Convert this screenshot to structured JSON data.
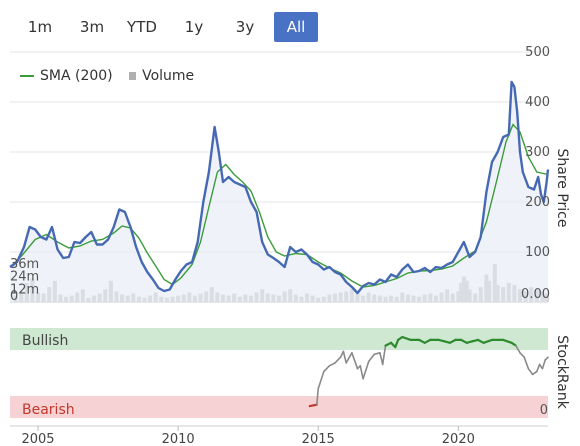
{
  "range_buttons": [
    {
      "label": "1m",
      "active": false
    },
    {
      "label": "3m",
      "active": false
    },
    {
      "label": "YTD",
      "active": false
    },
    {
      "label": "1y",
      "active": false
    },
    {
      "label": "3y",
      "active": false
    },
    {
      "label": "All",
      "active": true
    }
  ],
  "legend": {
    "sma_label": "SMA (200)",
    "volume_label": "Volume"
  },
  "colors": {
    "price": "#4669b4",
    "sma": "#3a9d3a",
    "volume": "#b9b9b9",
    "bullish_band": "#cfe8d2",
    "bearish_band": "#f6d2d4",
    "rank_line": "#8a8a8a",
    "rank_bullish": "#2d8a2d",
    "rank_bearish": "#c0392b",
    "active_button": "#4a72c4"
  },
  "chart_data": {
    "type": "line",
    "price_axis": {
      "title": "Share Price",
      "ticks": [
        0,
        100,
        200,
        300,
        400,
        500
      ],
      "tick_labels": [
        "0.00",
        "100",
        "200",
        "300",
        "400",
        "500"
      ],
      "ylim": [
        0,
        500
      ]
    },
    "volume_axis": {
      "ticks": [
        0,
        12,
        24,
        36
      ],
      "tick_labels": [
        "0",
        "12m",
        "24m",
        "36m"
      ],
      "ylim": [
        0,
        100
      ]
    },
    "x_axis": {
      "ticks": [
        2005,
        2010,
        2015,
        2020
      ],
      "tick_labels": [
        "2005",
        "2010",
        "2015",
        "2020"
      ],
      "xlim": [
        2004,
        2023.2
      ]
    },
    "series": [
      {
        "name": "Share Price",
        "points": [
          [
            2004.0,
            70
          ],
          [
            2004.25,
            80
          ],
          [
            2004.5,
            110
          ],
          [
            2004.7,
            150
          ],
          [
            2004.9,
            145
          ],
          [
            2005.1,
            130
          ],
          [
            2005.3,
            125
          ],
          [
            2005.5,
            150
          ],
          [
            2005.7,
            105
          ],
          [
            2005.9,
            88
          ],
          [
            2006.1,
            90
          ],
          [
            2006.3,
            120
          ],
          [
            2006.5,
            118
          ],
          [
            2006.7,
            130
          ],
          [
            2006.9,
            140
          ],
          [
            2007.1,
            115
          ],
          [
            2007.3,
            115
          ],
          [
            2007.5,
            125
          ],
          [
            2007.7,
            150
          ],
          [
            2007.9,
            185
          ],
          [
            2008.1,
            180
          ],
          [
            2008.3,
            150
          ],
          [
            2008.5,
            110
          ],
          [
            2008.7,
            80
          ],
          [
            2008.9,
            60
          ],
          [
            2009.1,
            45
          ],
          [
            2009.3,
            28
          ],
          [
            2009.5,
            22
          ],
          [
            2009.7,
            25
          ],
          [
            2009.9,
            45
          ],
          [
            2010.1,
            62
          ],
          [
            2010.3,
            75
          ],
          [
            2010.5,
            80
          ],
          [
            2010.7,
            120
          ],
          [
            2010.9,
            200
          ],
          [
            2011.1,
            260
          ],
          [
            2011.3,
            350
          ],
          [
            2011.45,
            300
          ],
          [
            2011.6,
            240
          ],
          [
            2011.8,
            250
          ],
          [
            2012.0,
            240
          ],
          [
            2012.2,
            235
          ],
          [
            2012.4,
            230
          ],
          [
            2012.6,
            200
          ],
          [
            2012.8,
            180
          ],
          [
            2013.0,
            120
          ],
          [
            2013.2,
            95
          ],
          [
            2013.4,
            88
          ],
          [
            2013.6,
            80
          ],
          [
            2013.8,
            70
          ],
          [
            2014.0,
            110
          ],
          [
            2014.2,
            100
          ],
          [
            2014.4,
            105
          ],
          [
            2014.6,
            95
          ],
          [
            2014.8,
            80
          ],
          [
            2015.0,
            75
          ],
          [
            2015.2,
            65
          ],
          [
            2015.4,
            70
          ],
          [
            2015.6,
            60
          ],
          [
            2015.8,
            55
          ],
          [
            2016.0,
            40
          ],
          [
            2016.2,
            30
          ],
          [
            2016.4,
            18
          ],
          [
            2016.6,
            32
          ],
          [
            2016.8,
            38
          ],
          [
            2017.0,
            35
          ],
          [
            2017.2,
            45
          ],
          [
            2017.4,
            40
          ],
          [
            2017.6,
            55
          ],
          [
            2017.8,
            50
          ],
          [
            2018.0,
            65
          ],
          [
            2018.2,
            75
          ],
          [
            2018.4,
            60
          ],
          [
            2018.6,
            62
          ],
          [
            2018.8,
            68
          ],
          [
            2019.0,
            60
          ],
          [
            2019.2,
            70
          ],
          [
            2019.4,
            68
          ],
          [
            2019.6,
            75
          ],
          [
            2019.8,
            80
          ],
          [
            2020.0,
            100
          ],
          [
            2020.2,
            120
          ],
          [
            2020.4,
            90
          ],
          [
            2020.6,
            100
          ],
          [
            2020.8,
            130
          ],
          [
            2021.0,
            220
          ],
          [
            2021.2,
            280
          ],
          [
            2021.4,
            300
          ],
          [
            2021.6,
            330
          ],
          [
            2021.8,
            335
          ],
          [
            2021.9,
            440
          ],
          [
            2022.0,
            430
          ],
          [
            2022.1,
            380
          ],
          [
            2022.2,
            300
          ],
          [
            2022.3,
            260
          ],
          [
            2022.5,
            230
          ],
          [
            2022.7,
            225
          ],
          [
            2022.85,
            250
          ],
          [
            2022.95,
            215
          ],
          [
            2023.05,
            200
          ],
          [
            2023.15,
            240
          ],
          [
            2023.2,
            265
          ]
        ]
      },
      {
        "name": "SMA (200)",
        "points": [
          [
            2004.1,
            72
          ],
          [
            2004.5,
            98
          ],
          [
            2004.9,
            125
          ],
          [
            2005.3,
            135
          ],
          [
            2005.7,
            120
          ],
          [
            2006.1,
            108
          ],
          [
            2006.5,
            112
          ],
          [
            2006.9,
            122
          ],
          [
            2007.3,
            125
          ],
          [
            2007.7,
            138
          ],
          [
            2008.0,
            152
          ],
          [
            2008.3,
            148
          ],
          [
            2008.6,
            128
          ],
          [
            2008.9,
            98
          ],
          [
            2009.2,
            72
          ],
          [
            2009.5,
            45
          ],
          [
            2009.8,
            35
          ],
          [
            2010.1,
            48
          ],
          [
            2010.5,
            75
          ],
          [
            2010.8,
            120
          ],
          [
            2011.1,
            190
          ],
          [
            2011.4,
            260
          ],
          [
            2011.7,
            275
          ],
          [
            2012.0,
            255
          ],
          [
            2012.3,
            240
          ],
          [
            2012.6,
            222
          ],
          [
            2012.9,
            180
          ],
          [
            2013.2,
            130
          ],
          [
            2013.5,
            100
          ],
          [
            2013.8,
            92
          ],
          [
            2014.2,
            97
          ],
          [
            2014.6,
            95
          ],
          [
            2015.0,
            80
          ],
          [
            2015.4,
            68
          ],
          [
            2015.8,
            58
          ],
          [
            2016.2,
            42
          ],
          [
            2016.6,
            30
          ],
          [
            2017.0,
            33
          ],
          [
            2017.4,
            40
          ],
          [
            2017.8,
            47
          ],
          [
            2018.2,
            58
          ],
          [
            2018.6,
            62
          ],
          [
            2019.0,
            63
          ],
          [
            2019.4,
            66
          ],
          [
            2019.8,
            72
          ],
          [
            2020.2,
            88
          ],
          [
            2020.6,
            102
          ],
          [
            2021.0,
            160
          ],
          [
            2021.4,
            250
          ],
          [
            2021.7,
            320
          ],
          [
            2021.95,
            355
          ],
          [
            2022.2,
            340
          ],
          [
            2022.5,
            290
          ],
          [
            2022.8,
            260
          ],
          [
            2023.2,
            255
          ]
        ]
      }
    ],
    "volume_bars": [
      [
        2004.2,
        6
      ],
      [
        2004.4,
        10
      ],
      [
        2004.6,
        18
      ],
      [
        2004.8,
        22
      ],
      [
        2005.0,
        9
      ],
      [
        2005.2,
        8
      ],
      [
        2005.4,
        14
      ],
      [
        2005.6,
        20
      ],
      [
        2005.8,
        7
      ],
      [
        2006.0,
        5
      ],
      [
        2006.2,
        6
      ],
      [
        2006.4,
        9
      ],
      [
        2006.6,
        12
      ],
      [
        2006.8,
        4
      ],
      [
        2007.0,
        6
      ],
      [
        2007.2,
        8
      ],
      [
        2007.4,
        12
      ],
      [
        2007.6,
        20
      ],
      [
        2007.8,
        10
      ],
      [
        2008.0,
        7
      ],
      [
        2008.2,
        6
      ],
      [
        2008.4,
        8
      ],
      [
        2008.6,
        5
      ],
      [
        2008.8,
        4
      ],
      [
        2009.0,
        6
      ],
      [
        2009.2,
        9
      ],
      [
        2009.4,
        5
      ],
      [
        2009.6,
        4
      ],
      [
        2009.8,
        5
      ],
      [
        2010.0,
        6
      ],
      [
        2010.2,
        7
      ],
      [
        2010.4,
        9
      ],
      [
        2010.6,
        6
      ],
      [
        2010.8,
        8
      ],
      [
        2011.0,
        10
      ],
      [
        2011.2,
        14
      ],
      [
        2011.4,
        9
      ],
      [
        2011.6,
        7
      ],
      [
        2011.8,
        6
      ],
      [
        2012.0,
        8
      ],
      [
        2012.2,
        5
      ],
      [
        2012.4,
        7
      ],
      [
        2012.6,
        6
      ],
      [
        2012.8,
        9
      ],
      [
        2013.0,
        12
      ],
      [
        2013.2,
        8
      ],
      [
        2013.4,
        7
      ],
      [
        2013.6,
        6
      ],
      [
        2013.8,
        10
      ],
      [
        2014.0,
        12
      ],
      [
        2014.2,
        7
      ],
      [
        2014.4,
        5
      ],
      [
        2014.6,
        8
      ],
      [
        2014.8,
        6
      ],
      [
        2015.0,
        4
      ],
      [
        2015.2,
        5
      ],
      [
        2015.4,
        7
      ],
      [
        2015.6,
        8
      ],
      [
        2015.8,
        9
      ],
      [
        2016.0,
        10
      ],
      [
        2016.2,
        12
      ],
      [
        2016.4,
        8
      ],
      [
        2016.6,
        6
      ],
      [
        2016.8,
        9
      ],
      [
        2017.0,
        7
      ],
      [
        2017.2,
        6
      ],
      [
        2017.4,
        5
      ],
      [
        2017.6,
        6
      ],
      [
        2017.8,
        5
      ],
      [
        2018.0,
        9
      ],
      [
        2018.2,
        7
      ],
      [
        2018.4,
        6
      ],
      [
        2018.6,
        5
      ],
      [
        2018.8,
        7
      ],
      [
        2019.0,
        8
      ],
      [
        2019.2,
        6
      ],
      [
        2019.4,
        9
      ],
      [
        2019.6,
        12
      ],
      [
        2019.8,
        8
      ],
      [
        2020.0,
        10
      ],
      [
        2020.1,
        18
      ],
      [
        2020.2,
        24
      ],
      [
        2020.3,
        20
      ],
      [
        2020.4,
        12
      ],
      [
        2020.6,
        8
      ],
      [
        2020.8,
        14
      ],
      [
        2021.0,
        26
      ],
      [
        2021.1,
        20
      ],
      [
        2021.3,
        36
      ],
      [
        2021.4,
        16
      ],
      [
        2021.6,
        14
      ],
      [
        2021.8,
        18
      ],
      [
        2022.0,
        16
      ],
      [
        2022.2,
        12
      ],
      [
        2022.4,
        10
      ],
      [
        2022.6,
        14
      ],
      [
        2022.8,
        12
      ],
      [
        2023.0,
        10
      ],
      [
        2023.15,
        8
      ]
    ],
    "stockrank": {
      "title": "StockRank",
      "band_labels": {
        "bullish": "Bullish",
        "bearish": "Bearish"
      },
      "tick_labels": [
        "0"
      ],
      "ylim": [
        0,
        100
      ],
      "points": [
        [
          2014.7,
          4
        ],
        [
          2014.95,
          6
        ],
        [
          2015.0,
          28
        ],
        [
          2015.2,
          52
        ],
        [
          2015.4,
          60
        ],
        [
          2015.6,
          64
        ],
        [
          2015.8,
          72
        ],
        [
          2015.9,
          80
        ],
        [
          2016.0,
          64
        ],
        [
          2016.2,
          78
        ],
        [
          2016.4,
          56
        ],
        [
          2016.5,
          60
        ],
        [
          2016.6,
          42
        ],
        [
          2016.8,
          66
        ],
        [
          2017.0,
          76
        ],
        [
          2017.2,
          78
        ],
        [
          2017.3,
          62
        ],
        [
          2017.4,
          88
        ],
        [
          2017.6,
          92
        ],
        [
          2017.75,
          86
        ],
        [
          2017.85,
          96
        ],
        [
          2018.0,
          100
        ],
        [
          2018.3,
          96
        ],
        [
          2018.6,
          96
        ],
        [
          2018.8,
          92
        ],
        [
          2019.0,
          96
        ],
        [
          2019.3,
          96
        ],
        [
          2019.5,
          94
        ],
        [
          2019.7,
          92
        ],
        [
          2019.9,
          96
        ],
        [
          2020.1,
          96
        ],
        [
          2020.3,
          92
        ],
        [
          2020.5,
          94
        ],
        [
          2020.7,
          96
        ],
        [
          2020.9,
          92
        ],
        [
          2021.2,
          96
        ],
        [
          2021.6,
          96
        ],
        [
          2021.9,
          92
        ],
        [
          2022.05,
          88
        ],
        [
          2022.2,
          78
        ],
        [
          2022.35,
          72
        ],
        [
          2022.5,
          56
        ],
        [
          2022.65,
          48
        ],
        [
          2022.8,
          52
        ],
        [
          2022.9,
          62
        ],
        [
          2023.0,
          56
        ],
        [
          2023.1,
          68
        ],
        [
          2023.2,
          72
        ]
      ]
    }
  }
}
